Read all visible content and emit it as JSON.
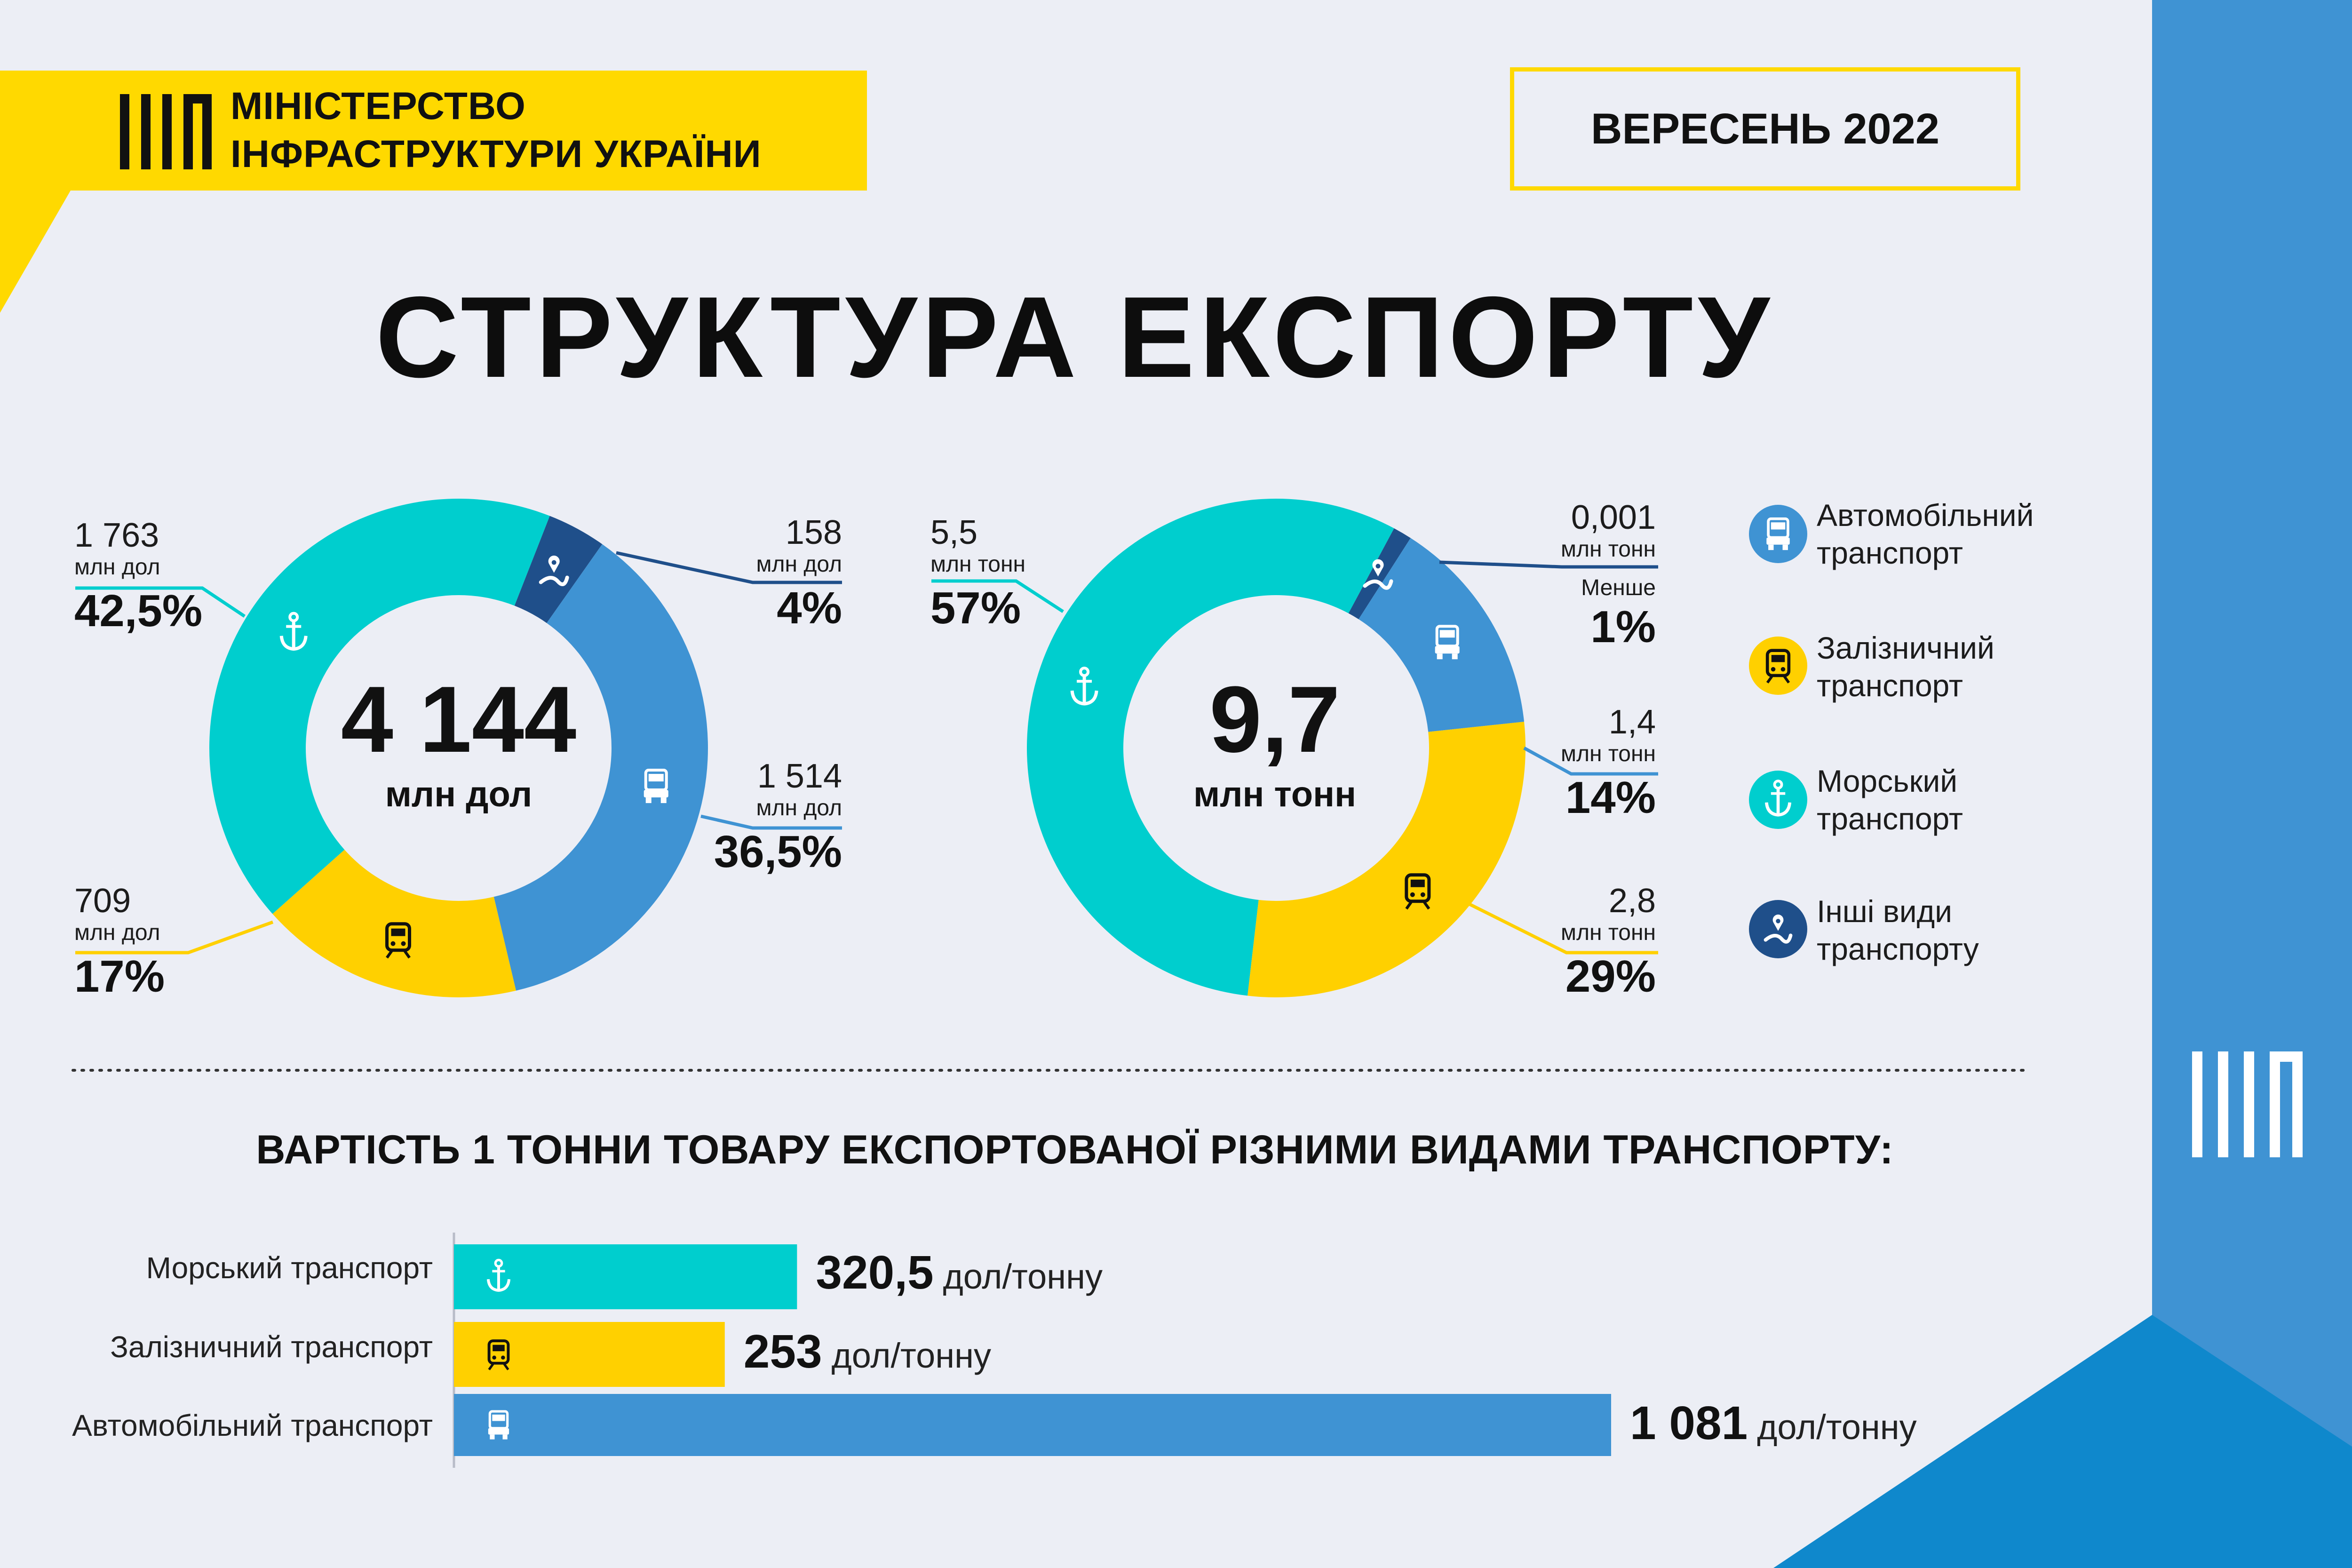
{
  "header": {
    "ministry_line1": "Міністерство",
    "ministry_line2": "інфраструктури України",
    "date": "ВЕРЕСЕНЬ 2022"
  },
  "title": "СТРУКТУРА ЕКСПОРТУ",
  "colors": {
    "sea": "#00cece",
    "auto": "#3f93d3",
    "rail": "#ffd000",
    "other": "#1f4f8a",
    "brand_yellow": "#ffd900",
    "brand_blue": "#3f93d3"
  },
  "icons": {
    "sea": "anchor-icon",
    "auto": "truck-icon",
    "rail": "train-icon",
    "other": "route-pin-icon"
  },
  "chart_value": {
    "total": "4 144",
    "unit": "млн дол",
    "labels": {
      "sea": {
        "value": "1 763",
        "unit": "млн дол",
        "pct": "42,5%"
      },
      "other": {
        "value": "158",
        "unit": "млн дол",
        "pct": "4%"
      },
      "auto": {
        "value": "1 514",
        "unit": "млн дол",
        "pct": "36,5%"
      },
      "rail": {
        "value": "709",
        "unit": "млн дол",
        "pct": "17%"
      }
    }
  },
  "chart_volume": {
    "total": "9,7",
    "unit": "млн тонн",
    "labels": {
      "sea": {
        "value": "5,5",
        "unit": "млн тонн",
        "pct": "57%"
      },
      "other": {
        "value": "0,001",
        "unit": "млн тонн",
        "note": "Менше",
        "pct": "1%"
      },
      "auto": {
        "value": "1,4",
        "unit": "млн тонн",
        "pct": "14%"
      },
      "rail": {
        "value": "2,8",
        "unit": "млн тонн",
        "pct": "29%"
      }
    }
  },
  "legend": [
    {
      "key": "auto",
      "line1": "Автомобільний",
      "line2": "транспорт"
    },
    {
      "key": "rail",
      "line1": "Залізничний",
      "line2": "транспорт"
    },
    {
      "key": "sea",
      "line1": "Морський",
      "line2": "транспорт"
    },
    {
      "key": "other",
      "line1": "Інші види",
      "line2": "транспорту"
    }
  ],
  "bars_section": {
    "title": "ВАРТІСТЬ 1 ТОННИ ТОВАРУ ЕКСПОРТОВАНОЇ РІЗНИМИ ВИДАМИ ТРАНСПОРТУ:"
  },
  "chart_data": [
    {
      "type": "pie",
      "subtype": "donut",
      "center_label": "4 144 млн дол",
      "categories": [
        "Морський транспорт",
        "Інші види транспорту",
        "Автомобільний транспорт",
        "Залізничний транспорт"
      ],
      "values": [
        1763,
        158,
        1514,
        709
      ],
      "percent": [
        42.5,
        4,
        36.5,
        17
      ]
    },
    {
      "type": "pie",
      "subtype": "donut",
      "center_label": "9,7 млн тонн",
      "categories": [
        "Морський транспорт",
        "Інші види транспорту",
        "Автомобільний транспорт",
        "Залізничний транспорт"
      ],
      "values": [
        5.5,
        0.001,
        1.4,
        2.8
      ],
      "percent": [
        57,
        1,
        14,
        29
      ]
    },
    {
      "type": "bar",
      "orientation": "horizontal",
      "categories": [
        "Морський транспорт",
        "Залізничний транспорт",
        "Автомобільний транспорт"
      ],
      "values": [
        320.5,
        253,
        1081
      ],
      "value_labels": [
        "320,5",
        "253",
        "1 081"
      ],
      "unit": "дол/тонну"
    }
  ]
}
